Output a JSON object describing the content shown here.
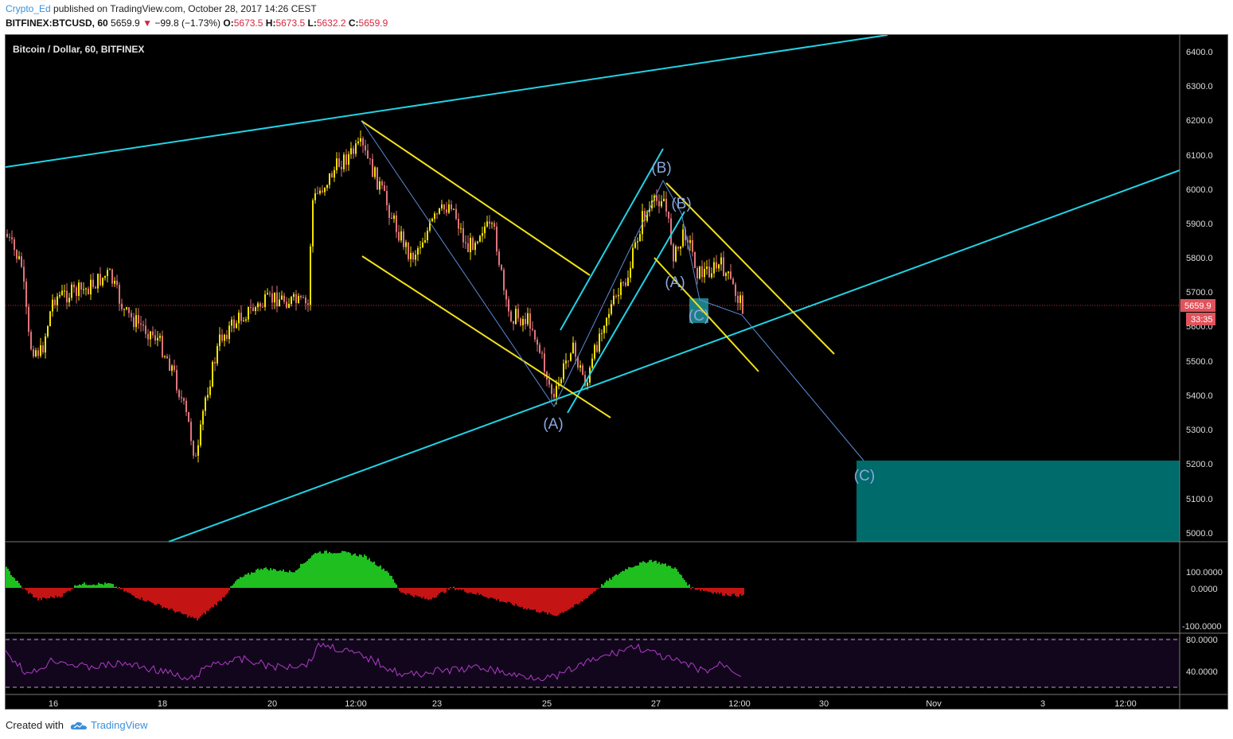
{
  "header": {
    "username": "Crypto_Ed",
    "published_text": "published on TradingView.com, October 28, 2017 14:26 CEST"
  },
  "quote_bar": {
    "symbol": "BITFINEX:BTCUSD, 60",
    "last": "5659.9",
    "change": "−99.8 (−1.73%)",
    "o_label": "O:",
    "o": "5673.5",
    "h_label": "H:",
    "h": "5673.5",
    "l_label": "L:",
    "l": "5632.2",
    "c_label": "C:",
    "c": "5659.9",
    "down_color": "#d7263d"
  },
  "chart": {
    "legend": "Bitcoin / Dollar, 60, BITFINEX",
    "price_axis": [
      "6400.0",
      "6300.0",
      "6200.0",
      "6100.0",
      "6000.0",
      "5900.0",
      "5800.0",
      "5700.0",
      "5600.0",
      "5500.0",
      "5400.0",
      "5300.0",
      "5200.0",
      "5100.0",
      "5000.0"
    ],
    "last_price_label": "5659.9",
    "countdown_label": "33:35",
    "time_axis": [
      "16",
      "18",
      "20",
      "12:00",
      "23",
      "25",
      "27",
      "12:00",
      "30",
      "Nov",
      "3",
      "12:00"
    ],
    "wave_labels": [
      "(A)",
      "(B)",
      "(B)",
      "(A)",
      "(C)",
      "(C)"
    ],
    "oscillator_axis": [
      "100.0000",
      "0.0000",
      "-100.0000"
    ],
    "rsi_axis": [
      "80.0000",
      "40.0000"
    ],
    "colors": {
      "background": "#000000",
      "candle_up": "#f5e400",
      "candle_down": "#e0747a",
      "trendline_cyan": "#22d3e6",
      "channel_yellow": "#f0e21a",
      "wave_path": "#5b8bd6",
      "target_box": "#006b6b",
      "osc_up": "#1fbf1f",
      "osc_down": "#c41414",
      "rsi_line": "#b03cc8",
      "rsi_bg": "#12061c",
      "price_tag": "#e0535c"
    }
  },
  "footer": {
    "created_with": "Created with",
    "brand": "TradingView"
  }
}
